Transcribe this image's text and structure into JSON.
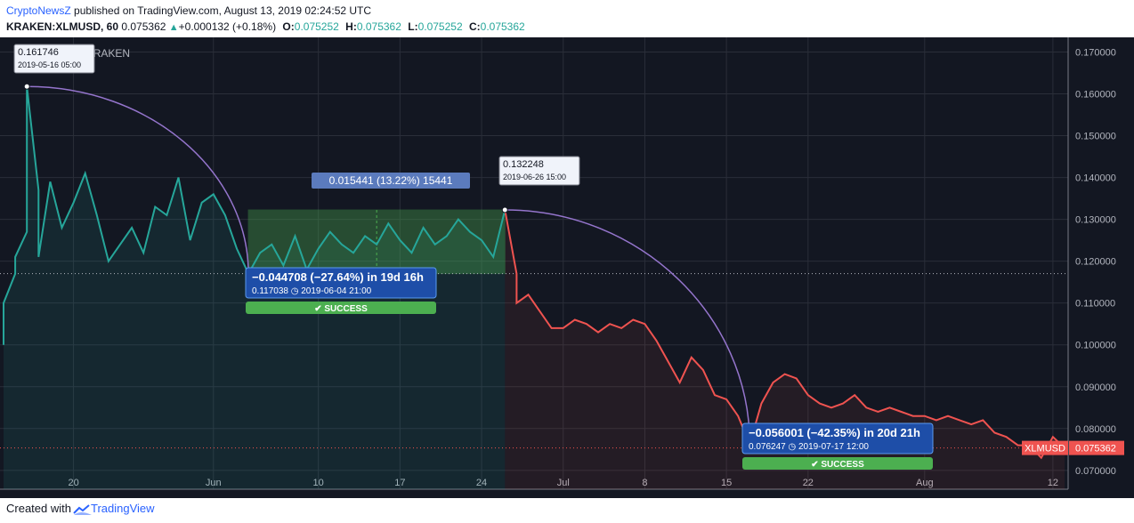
{
  "header": {
    "author": "CryptoNewsZ",
    "published": "published on TradingView.com, August 13, 2019 02:24:52 UTC",
    "symbol": "KRAKEN:XLMUSD, 60",
    "last": "0.075362",
    "change": "+0.000132 (+0.18%)",
    "o_label": "O:",
    "o": "0.075252",
    "h_label": "H:",
    "h": "0.075362",
    "l_label": "L:",
    "l": "0.075252",
    "c_label": "C:",
    "c": "0.075362"
  },
  "watermark": "XLMUSD, 60, KRAKEN",
  "footer": {
    "created_with": "Created with",
    "brand": "TradingView"
  },
  "colors": {
    "background": "#131722",
    "up_line": "#26a69a",
    "down_line": "#ef5350",
    "arc": "#9575cd",
    "label_blue": "#2962ff",
    "success": "#4caf50",
    "last_price": "#ef5350"
  },
  "annotations": {
    "peak": {
      "price": "0.161746",
      "time": "2019-05-16 05:00"
    },
    "high2": {
      "price": "0.132248",
      "time": "2019-06-26 15:00"
    },
    "range_label": "0.015441 (13.22%) 15441",
    "drop1": {
      "line": "−0.044708 (−27.64%) in 19d 16h",
      "price": "0.117038",
      "time": "2019-06-04  21:00",
      "badge": "✔ SUCCESS"
    },
    "drop2": {
      "line": "−0.056001 (−42.35%) in 20d 21h",
      "price": "0.076247",
      "time": "2019-07-17  12:00",
      "badge": "✔ SUCCESS"
    },
    "last_symbol": "XLMUSD",
    "last_price": "0.075362"
  },
  "chart_data": {
    "type": "line",
    "title": "",
    "xlabel": "",
    "ylabel": "",
    "x_tick_labels": [
      "20",
      "Jun",
      "10",
      "17",
      "24",
      "Jul",
      "8",
      "15",
      "22",
      "Aug",
      "12"
    ],
    "y_tick_labels": [
      "0.170000",
      "0.160000",
      "0.150000",
      "0.140000",
      "0.130000",
      "0.120000",
      "0.110000",
      "0.100000",
      "0.090000",
      "0.080000",
      "0.070000"
    ],
    "ylim": [
      0.0655,
      0.1735
    ],
    "xlim": [
      "2019-05-14",
      "2019-08-13"
    ],
    "grid": true,
    "series": [
      {
        "x": [
          "2019-05-14",
          "2019-05-14",
          "2019-05-15",
          "2019-05-15",
          "2019-05-16",
          "2019-05-16",
          "2019-05-17",
          "2019-05-17",
          "2019-05-18",
          "2019-05-19",
          "2019-05-20",
          "2019-05-21",
          "2019-05-22",
          "2019-05-23",
          "2019-05-24",
          "2019-05-25",
          "2019-05-26",
          "2019-05-27",
          "2019-05-28",
          "2019-05-29",
          "2019-05-30",
          "2019-05-31",
          "2019-06-01",
          "2019-06-02",
          "2019-06-03",
          "2019-06-04",
          "2019-06-05",
          "2019-06-06",
          "2019-06-07",
          "2019-06-08",
          "2019-06-09",
          "2019-06-10",
          "2019-06-11",
          "2019-06-12",
          "2019-06-13",
          "2019-06-14",
          "2019-06-15",
          "2019-06-16",
          "2019-06-17",
          "2019-06-18",
          "2019-06-19",
          "2019-06-20",
          "2019-06-21",
          "2019-06-22",
          "2019-06-23",
          "2019-06-24",
          "2019-06-25",
          "2019-06-26",
          "2019-06-27",
          "2019-06-27",
          "2019-06-28",
          "2019-06-29",
          "2019-06-30",
          "2019-07-01",
          "2019-07-02",
          "2019-07-03",
          "2019-07-04",
          "2019-07-05",
          "2019-07-06",
          "2019-07-07",
          "2019-07-08",
          "2019-07-09",
          "2019-07-10",
          "2019-07-11",
          "2019-07-12",
          "2019-07-13",
          "2019-07-14",
          "2019-07-15",
          "2019-07-16",
          "2019-07-17",
          "2019-07-18",
          "2019-07-19",
          "2019-07-20",
          "2019-07-21",
          "2019-07-22",
          "2019-07-23",
          "2019-07-24",
          "2019-07-25",
          "2019-07-26",
          "2019-07-27",
          "2019-07-28",
          "2019-07-29",
          "2019-07-30",
          "2019-07-31",
          "2019-08-01",
          "2019-08-02",
          "2019-08-03",
          "2019-08-04",
          "2019-08-05",
          "2019-08-06",
          "2019-08-07",
          "2019-08-08",
          "2019-08-09",
          "2019-08-10",
          "2019-08-11",
          "2019-08-12",
          "2019-08-13"
        ],
        "y": [
          0.1,
          0.11,
          0.117,
          0.121,
          0.127,
          0.161746,
          0.137,
          0.121,
          0.139,
          0.128,
          0.134,
          0.141,
          0.131,
          0.12,
          0.124,
          0.128,
          0.122,
          0.133,
          0.131,
          0.14,
          0.125,
          0.134,
          0.136,
          0.131,
          0.123,
          0.117038,
          0.122,
          0.124,
          0.119,
          0.126,
          0.118,
          0.123,
          0.127,
          0.124,
          0.122,
          0.126,
          0.124,
          0.129,
          0.125,
          0.122,
          0.128,
          0.124,
          0.126,
          0.13,
          0.127,
          0.125,
          0.121,
          0.132248,
          0.117,
          0.11,
          0.112,
          0.108,
          0.104,
          0.104,
          0.106,
          0.105,
          0.103,
          0.105,
          0.104,
          0.106,
          0.105,
          0.101,
          0.096,
          0.091,
          0.097,
          0.094,
          0.088,
          0.087,
          0.083,
          0.076247,
          0.086,
          0.091,
          0.093,
          0.092,
          0.088,
          0.086,
          0.085,
          0.086,
          0.088,
          0.085,
          0.084,
          0.085,
          0.084,
          0.083,
          0.083,
          0.082,
          0.083,
          0.082,
          0.081,
          0.082,
          0.079,
          0.078,
          0.076,
          0.076,
          0.073,
          0.078,
          0.075362
        ]
      }
    ]
  }
}
